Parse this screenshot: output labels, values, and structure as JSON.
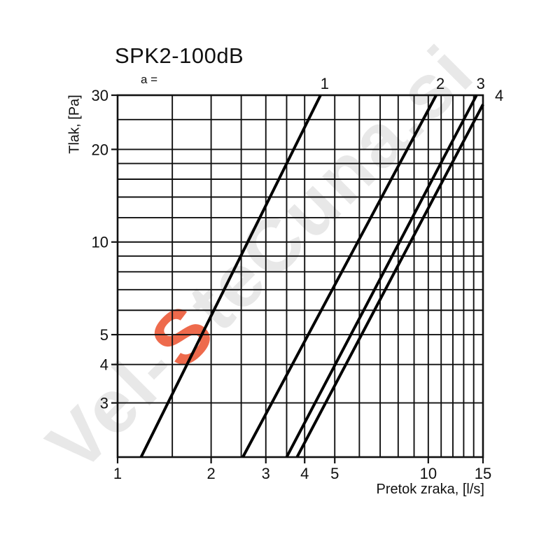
{
  "header": {
    "title": "SPK2-100dB",
    "param_label": "a ="
  },
  "axes_labels": {
    "x": "Pretok zraka, [l/s]",
    "y": "Tlak, [Pa]"
  },
  "watermark": {
    "prefix": "Vel-",
    "accent": "S",
    "suffix": "teCuna.si",
    "color": "#e8e8e8",
    "accent_color": "#ee6a4c"
  },
  "chart_data": {
    "type": "line",
    "title": "SPK2-100dB",
    "xlabel": "Pretok zraka, [l/s]",
    "ylabel": "Tlak, [Pa]",
    "xscale": "log",
    "yscale": "log",
    "xlim": [
      1,
      15
    ],
    "ylim": [
      2,
      30
    ],
    "grid": true,
    "x_tick_labels": [
      1,
      2,
      3,
      4,
      5,
      10,
      15
    ],
    "y_tick_labels": [
      30,
      20,
      10,
      5,
      4,
      3
    ],
    "x_gridlines": [
      1,
      1.5,
      2,
      2.5,
      3,
      3.5,
      4,
      5,
      6,
      7,
      8,
      9,
      10,
      11,
      12,
      13,
      14,
      15
    ],
    "y_gridlines": [
      2,
      3,
      4,
      5,
      6,
      7,
      8,
      9,
      10,
      12,
      14,
      16,
      18,
      20,
      25,
      30
    ],
    "legend": "curve parameter labels (a values) printed at upper line ends",
    "line_color": "#000000",
    "series": [
      {
        "name": "1",
        "points": [
          [
            1.19,
            2
          ],
          [
            4.5,
            30
          ]
        ]
      },
      {
        "name": "2",
        "points": [
          [
            2.53,
            2
          ],
          [
            10.6,
            30
          ]
        ]
      },
      {
        "name": "3",
        "points": [
          [
            3.5,
            2
          ],
          [
            14.3,
            30
          ]
        ]
      },
      {
        "name": "4",
        "points": [
          [
            3.78,
            2
          ],
          [
            15,
            28
          ]
        ]
      }
    ]
  }
}
